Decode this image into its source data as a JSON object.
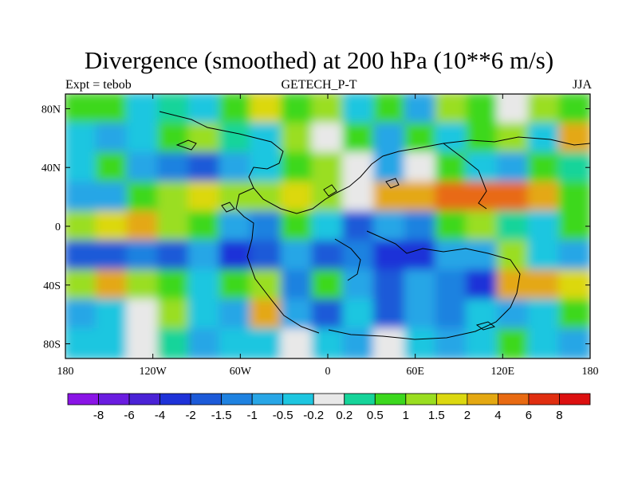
{
  "chart_data": {
    "type": "heatmap",
    "title": "Divergence (smoothed) at 200 hPa (10**6 m/s)",
    "subtitle_left": "Expt = tebob",
    "subtitle_center": "GETECH_P-T",
    "subtitle_right": "JJA",
    "x_ticks": [
      "180",
      "120W",
      "60W",
      "0",
      "60E",
      "120E",
      "180"
    ],
    "x_tick_values": [
      -180,
      -120,
      -60,
      0,
      60,
      120,
      180
    ],
    "y_ticks": [
      "80N",
      "40N",
      "0",
      "40S",
      "80S"
    ],
    "y_tick_values": [
      80,
      40,
      0,
      -40,
      -80
    ],
    "xlim": [
      -180,
      180
    ],
    "ylim": [
      -90,
      90
    ],
    "colorbar": {
      "labels": [
        "-8",
        "-6",
        "-4",
        "-2",
        "-1.5",
        "-1",
        "-0.5",
        "-0.2",
        "0.2",
        "0.5",
        "1",
        "1.5",
        "2",
        "4",
        "6",
        "8"
      ],
      "colors": [
        "#8a14e6",
        "#6a1ce0",
        "#4a22d6",
        "#1e32d8",
        "#1c5ad8",
        "#1f82e0",
        "#28a6e6",
        "#1ec6e0",
        "#e8e8e8",
        "#16d49a",
        "#3cd81e",
        "#9ade20",
        "#dcd810",
        "#e4a812",
        "#e86a12",
        "#e02e10",
        "#dc1010"
      ]
    },
    "field_bands": [
      {
        "lat": 80,
        "values": [
          0.5,
          0.5,
          -0.5,
          0.2,
          -0.5,
          0.5,
          1.5,
          0.5,
          1,
          -0.5,
          0.5,
          -1,
          1,
          0.5,
          0,
          1,
          0.5
        ]
      },
      {
        "lat": 60,
        "values": [
          -0.5,
          -1,
          -0.5,
          0.5,
          1,
          0.2,
          -0.5,
          1,
          0,
          0.5,
          -1,
          0.5,
          -0.5,
          0.5,
          1,
          -0.5,
          2
        ]
      },
      {
        "lat": 40,
        "values": [
          -0.5,
          0.5,
          -1,
          -1.5,
          -2,
          -1,
          -0.5,
          0.5,
          1,
          0,
          -1,
          0,
          0.5,
          -0.5,
          -1,
          0.5,
          0.2
        ]
      },
      {
        "lat": 20,
        "values": [
          -1,
          -1,
          0.5,
          1,
          1.5,
          1,
          1,
          1.5,
          1,
          0,
          2,
          2,
          4,
          4,
          4,
          2,
          0.5
        ]
      },
      {
        "lat": 0,
        "values": [
          1,
          1.5,
          2,
          1,
          0.5,
          -1,
          -1.5,
          0.5,
          -0.5,
          -2,
          -1,
          -1.5,
          0.5,
          1,
          0.2,
          -0.5,
          0.5
        ]
      },
      {
        "lat": -20,
        "values": [
          -2,
          -2,
          -1.5,
          -2,
          -1,
          -4,
          -2,
          -1,
          -2,
          -1.5,
          -4,
          -4,
          -1,
          -1,
          1,
          -0.5,
          -1
        ]
      },
      {
        "lat": -40,
        "values": [
          1,
          2,
          1,
          0.5,
          -0.5,
          0.5,
          1,
          -1.5,
          0.5,
          -1,
          -2,
          -1,
          -1.5,
          -4,
          2,
          2,
          1.5
        ]
      },
      {
        "lat": -60,
        "values": [
          -1,
          -0.5,
          0,
          1,
          -0.5,
          -1,
          2,
          -1,
          -2,
          -0.5,
          -2,
          -1,
          -1.5,
          -0.5,
          -1,
          -0.5,
          0.5
        ]
      },
      {
        "lat": -80,
        "values": [
          -0.5,
          -0.5,
          0,
          0.2,
          -1,
          -0.5,
          -0.5,
          0,
          -0.5,
          -1,
          0,
          -0.5,
          -1,
          -0.5,
          0.5,
          -0.5,
          -1
        ]
      }
    ]
  }
}
